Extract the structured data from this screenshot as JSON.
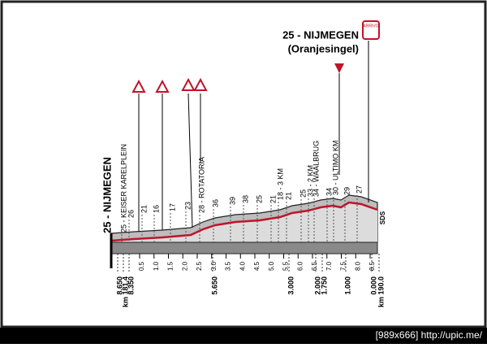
{
  "top_label": {
    "title": "25 - NIJMEGEN",
    "subtitle": "(Oranjesingel)",
    "badge": "ARRIVO"
  },
  "start_label": "25 - NIJMEGEN",
  "profile_labels": [
    "25 - KEISER KARELPLEIN",
    "26",
    "21",
    "16",
    "17",
    "23",
    "28 - ROTATORIA",
    "36",
    "39",
    "38",
    "25",
    "21",
    "18 - 3 KM",
    "21",
    "25",
    "33 - 2 KM",
    "34 - WAALBRUG",
    "34",
    "30 - ULTIMO KM",
    "29",
    "27"
  ],
  "km_marks": [
    "0.5",
    "1.0",
    "1.5",
    "2.0",
    "2.5",
    "3.0",
    "3.5",
    "4.0",
    "4.5",
    "5.0",
    "5.5",
    "6.0",
    "6.5",
    "7.0",
    "7.5",
    "8.0",
    "8.5"
  ],
  "distance_labels": [
    "8.650",
    "km 181,4",
    "8.350",
    "5.650",
    "3.000",
    "2.000",
    "1.750",
    "1.000",
    "0.000",
    "km 190.0"
  ],
  "side_label": "SDS",
  "footer": "[989x666] http://upic.me/"
}
